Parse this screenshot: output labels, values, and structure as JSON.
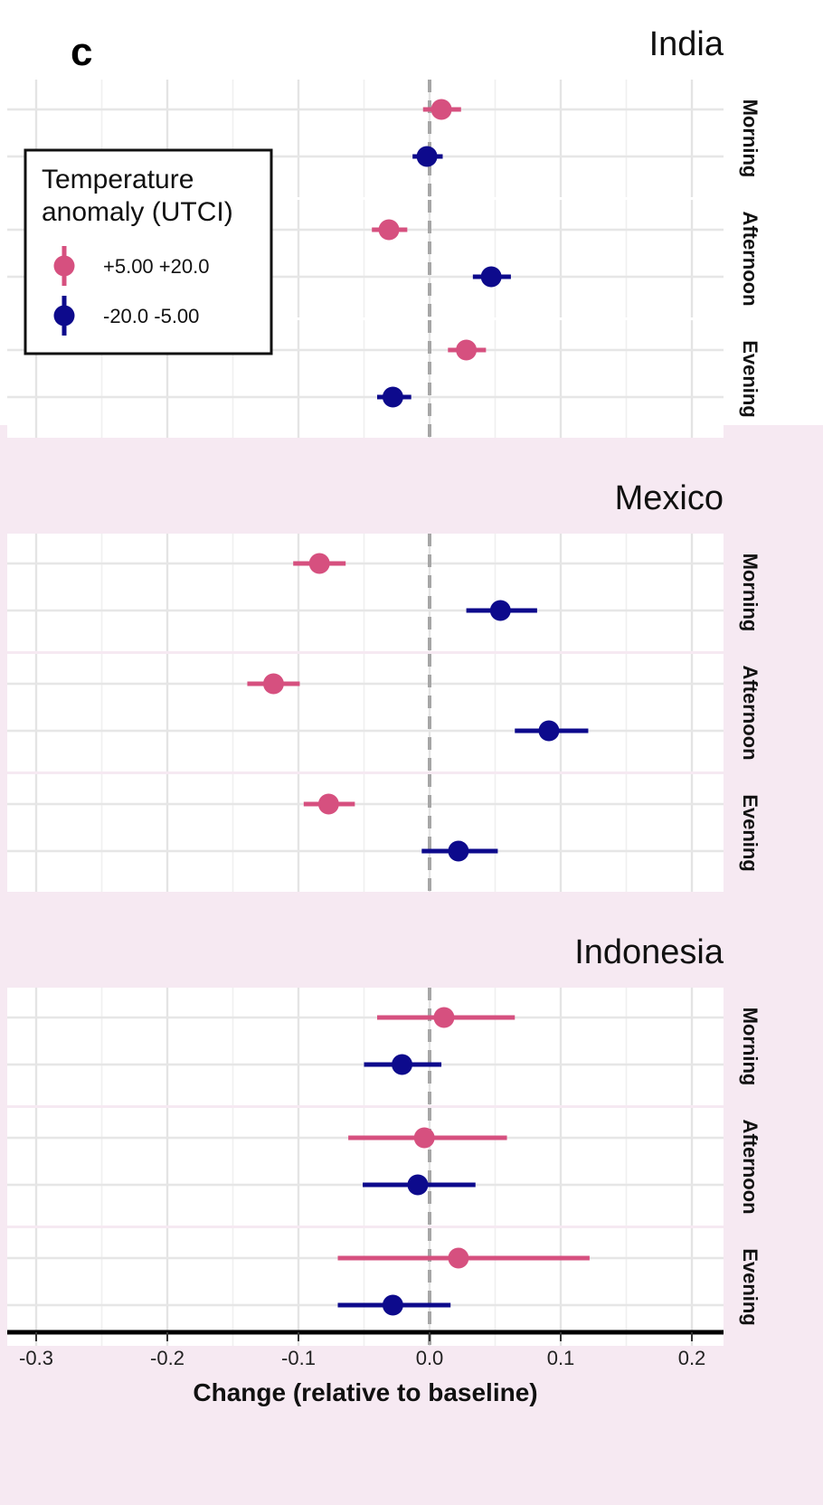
{
  "figure": {
    "panel_label": "c"
  },
  "chart_data": {
    "type": "scatter",
    "subtype": "point-range (forest plot), faceted",
    "xlabel": "Change (relative to baseline)",
    "xlim": [
      -0.32,
      0.225
    ],
    "xticks": [
      -0.3,
      -0.2,
      -0.1,
      0.0,
      0.1,
      0.2
    ],
    "xtick_labels": [
      "-0.3",
      "-0.2",
      "-0.1",
      "0.0",
      "0.1",
      "0.2"
    ],
    "reference_line": 0,
    "grid": true,
    "legend": {
      "title_lines": [
        "Temperature",
        "anomaly (UTCI)"
      ],
      "placement": "top-left",
      "entries": [
        {
          "label": "+5.00 +20.0",
          "color": "#d6507f"
        },
        {
          "label": "-20.0 -5.00",
          "color": "#0d0a8c"
        }
      ]
    },
    "time_groups": [
      "Morning",
      "Afternoon",
      "Evening"
    ],
    "time_group_labels": [
      "Morning",
      "Afternoon",
      "Evening"
    ],
    "facets": [
      {
        "country": "India",
        "points": [
          {
            "time": "Morning",
            "anomaly": "+5.00 +20.0",
            "estimate": 0.009,
            "low": -0.005,
            "high": 0.024
          },
          {
            "time": "Morning",
            "anomaly": "-20.0 -5.00",
            "estimate": -0.002,
            "low": -0.013,
            "high": 0.01
          },
          {
            "time": "Afternoon",
            "anomaly": "+5.00 +20.0",
            "estimate": -0.031,
            "low": -0.044,
            "high": -0.017
          },
          {
            "time": "Afternoon",
            "anomaly": "-20.0 -5.00",
            "estimate": 0.047,
            "low": 0.033,
            "high": 0.062
          },
          {
            "time": "Evening",
            "anomaly": "+5.00 +20.0",
            "estimate": 0.028,
            "low": 0.014,
            "high": 0.043
          },
          {
            "time": "Evening",
            "anomaly": "-20.0 -5.00",
            "estimate": -0.028,
            "low": -0.04,
            "high": -0.014
          }
        ]
      },
      {
        "country": "Mexico",
        "points": [
          {
            "time": "Morning",
            "anomaly": "+5.00 +20.0",
            "estimate": -0.084,
            "low": -0.104,
            "high": -0.064
          },
          {
            "time": "Morning",
            "anomaly": "-20.0 -5.00",
            "estimate": 0.054,
            "low": 0.028,
            "high": 0.082
          },
          {
            "time": "Afternoon",
            "anomaly": "+5.00 +20.0",
            "estimate": -0.119,
            "low": -0.139,
            "high": -0.099
          },
          {
            "time": "Afternoon",
            "anomaly": "-20.0 -5.00",
            "estimate": 0.091,
            "low": 0.065,
            "high": 0.121
          },
          {
            "time": "Evening",
            "anomaly": "+5.00 +20.0",
            "estimate": -0.077,
            "low": -0.096,
            "high": -0.057
          },
          {
            "time": "Evening",
            "anomaly": "-20.0 -5.00",
            "estimate": 0.022,
            "low": -0.006,
            "high": 0.052
          }
        ]
      },
      {
        "country": "Indonesia",
        "points": [
          {
            "time": "Morning",
            "anomaly": "+5.00 +20.0",
            "estimate": 0.011,
            "low": -0.04,
            "high": 0.065
          },
          {
            "time": "Morning",
            "anomaly": "-20.0 -5.00",
            "estimate": -0.021,
            "low": -0.05,
            "high": 0.009
          },
          {
            "time": "Afternoon",
            "anomaly": "+5.00 +20.0",
            "estimate": -0.004,
            "low": -0.062,
            "high": 0.059
          },
          {
            "time": "Afternoon",
            "anomaly": "-20.0 -5.00",
            "estimate": -0.009,
            "low": -0.051,
            "high": 0.035
          },
          {
            "time": "Evening",
            "anomaly": "+5.00 +20.0",
            "estimate": 0.022,
            "low": -0.07,
            "high": 0.122
          },
          {
            "time": "Evening",
            "anomaly": "-20.0 -5.00",
            "estimate": -0.028,
            "low": -0.07,
            "high": 0.016
          }
        ]
      }
    ]
  }
}
